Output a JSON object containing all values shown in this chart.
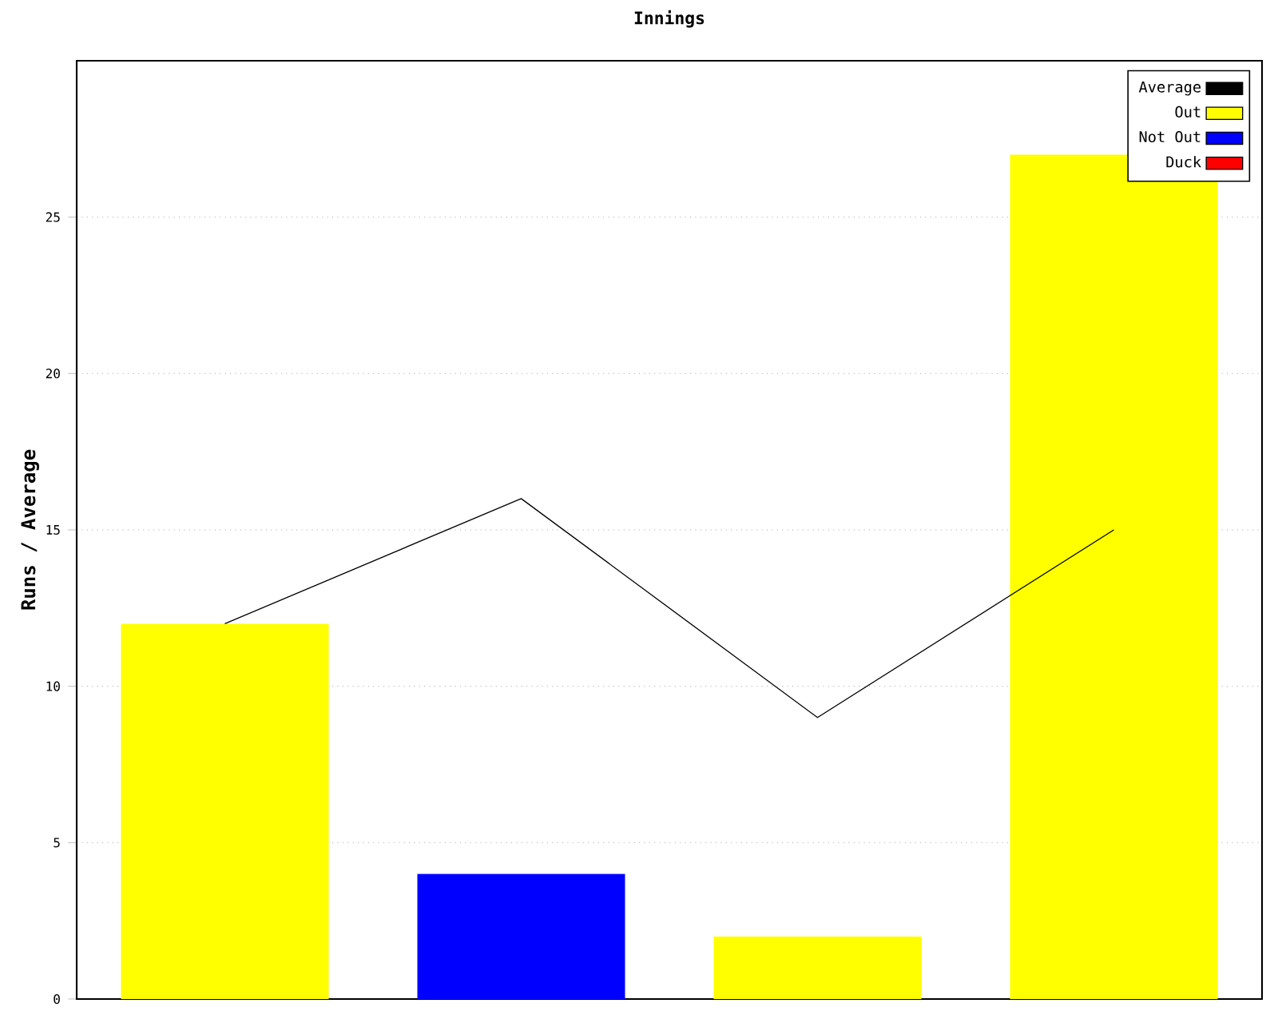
{
  "chart_data": {
    "type": "bar",
    "title": "Innings",
    "ylabel": "Runs / Average",
    "categories": [
      null,
      null,
      null,
      null
    ],
    "series": [
      {
        "name": "Average",
        "type": "line",
        "color": "#000000",
        "values": [
          12,
          16,
          9,
          15
        ]
      },
      {
        "name": "Out",
        "color": "#ffff00",
        "values": [
          12,
          null,
          2,
          27
        ]
      },
      {
        "name": "Not Out",
        "color": "#0000ff",
        "values": [
          null,
          4,
          null,
          null
        ]
      },
      {
        "name": "Duck",
        "color": "#ff0000",
        "values": [
          null,
          null,
          null,
          null
        ]
      }
    ],
    "ylim": [
      0,
      30
    ],
    "yticks": [
      0,
      5,
      10,
      15,
      20,
      25
    ],
    "grid": "y",
    "legend": "top right",
    "marker": "none",
    "tick_labels": "y"
  }
}
